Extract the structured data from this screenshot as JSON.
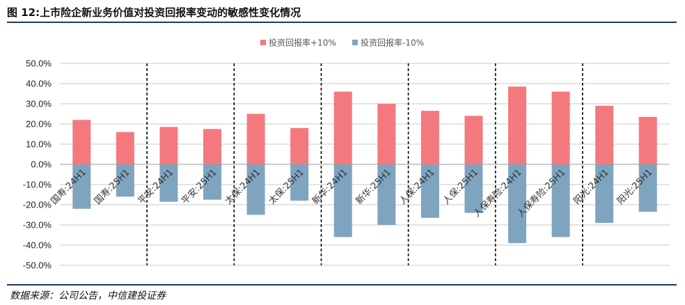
{
  "figure": {
    "title": "图 12:上市险企新业务价值对投资回报率变动的敏感性变化情况",
    "source": "数据来源：公司公告，中信建投证券"
  },
  "chart_data": {
    "type": "bar",
    "categories": [
      "国寿:24H1",
      "国寿:25H1",
      "平安:24H1",
      "平安:25H1",
      "太保:24H1",
      "太保:25H1",
      "新华:24H1",
      "新华:25H1",
      "人保:24H1",
      "人保:25H1",
      "人保寿险:24H1",
      "人保寿险:25H1",
      "阳光:24H1",
      "阳光:25H1"
    ],
    "series": [
      {
        "name": "投资回报率+10%",
        "color": "#f4797e",
        "values": [
          22.0,
          16.0,
          18.5,
          17.5,
          25.0,
          18.0,
          36.0,
          30.0,
          26.5,
          24.0,
          38.5,
          36.0,
          29.0,
          23.5
        ]
      },
      {
        "name": "投资回报率-10%",
        "color": "#7fa4c0",
        "values": [
          -22.0,
          -16.0,
          -18.5,
          -17.5,
          -25.0,
          -18.0,
          -36.0,
          -30.0,
          -26.5,
          -24.0,
          -39.0,
          -36.0,
          -29.0,
          -23.5
        ]
      }
    ],
    "ylim": [
      -50,
      50
    ],
    "yticks": [
      "50.0%",
      "40.0%",
      "30.0%",
      "20.0%",
      "10.0%",
      "0.0%",
      "-10.0%",
      "-20.0%",
      "-30.0%",
      "-40.0%",
      "-50.0%"
    ],
    "grid": true,
    "legend": "top-center",
    "group_separators": "dashed lines between companies",
    "stacked": true
  }
}
